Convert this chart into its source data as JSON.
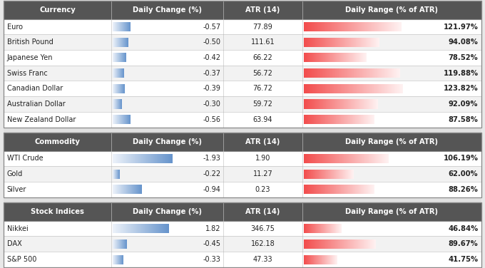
{
  "sections": [
    {
      "header": "Currency",
      "rows": [
        {
          "name": "Euro",
          "daily_change": -0.57,
          "atr": "77.89",
          "daily_range": 121.97
        },
        {
          "name": "British Pound",
          "daily_change": -0.5,
          "atr": "111.61",
          "daily_range": 94.08
        },
        {
          "name": "Japanese Yen",
          "daily_change": -0.42,
          "atr": "66.22",
          "daily_range": 78.52
        },
        {
          "name": "Swiss Franc",
          "daily_change": -0.37,
          "atr": "56.72",
          "daily_range": 119.88
        },
        {
          "name": "Canadian Dollar",
          "daily_change": -0.39,
          "atr": "76.72",
          "daily_range": 123.82
        },
        {
          "name": "Australian Dollar",
          "daily_change": -0.3,
          "atr": "59.72",
          "daily_range": 92.09
        },
        {
          "name": "New Zealand Dollar",
          "daily_change": -0.56,
          "atr": "63.94",
          "daily_range": 87.58
        }
      ]
    },
    {
      "header": "Commodity",
      "rows": [
        {
          "name": "WTI Crude",
          "daily_change": -1.93,
          "atr": "1.90",
          "daily_range": 106.19
        },
        {
          "name": "Gold",
          "daily_change": -0.22,
          "atr": "11.27",
          "daily_range": 62.0
        },
        {
          "name": "Silver",
          "daily_change": -0.94,
          "atr": "0.23",
          "daily_range": 88.26
        }
      ]
    },
    {
      "header": "Stock Indices",
      "rows": [
        {
          "name": "Nikkei",
          "daily_change": 1.82,
          "atr": "346.75",
          "daily_range": 46.84
        },
        {
          "name": "DAX",
          "daily_change": -0.45,
          "atr": "162.18",
          "daily_range": 89.67
        },
        {
          "name": "S&P 500",
          "daily_change": -0.33,
          "atr": "47.33",
          "daily_range": 41.75
        }
      ]
    }
  ],
  "col_headers": [
    "Daily Change (%)",
    "ATR (14)",
    "Daily Range (% of ATR)"
  ],
  "header_bg": "#555555",
  "header_fg": "#ffffff",
  "row_bg_even": "#ffffff",
  "row_bg_odd": "#f2f2f2",
  "border_color": "#bbbbbb",
  "outer_border": "#888888",
  "blue_bar_max": 2.0,
  "red_bar_max": 130.0,
  "gap_color": "#e0e0e0"
}
